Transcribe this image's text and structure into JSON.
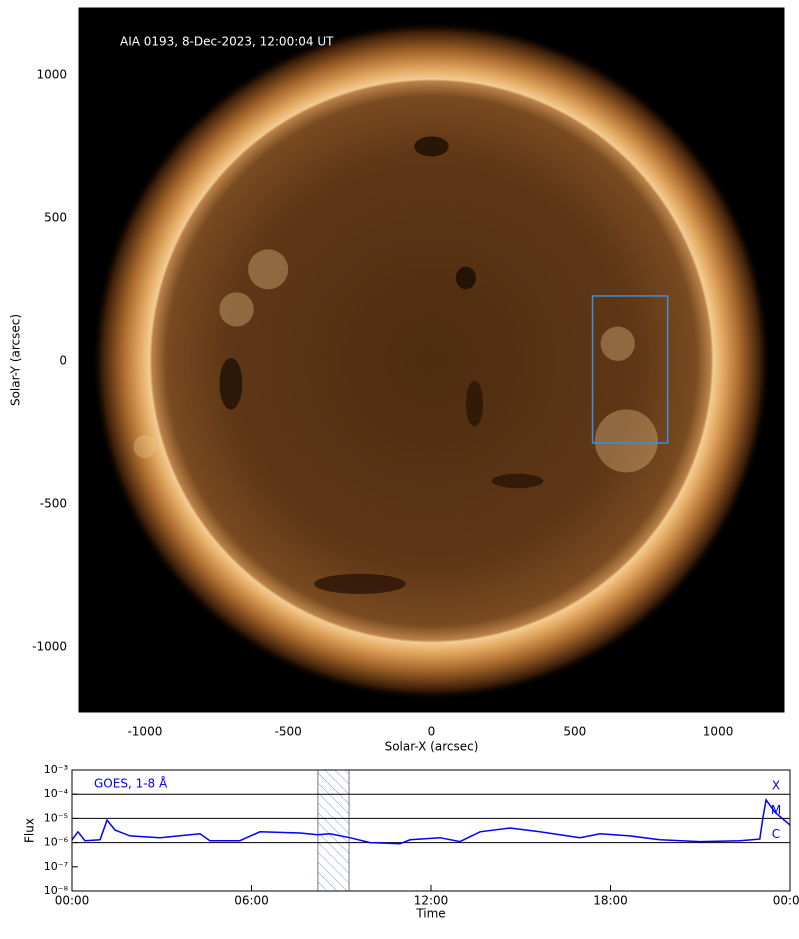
{
  "chart_data": [
    {
      "type": "image",
      "annotation": "AIA 0193, 8-Dec-2023, 12:00:04 UT",
      "xlabel": "Solar-X (arcsec)",
      "ylabel": "Solar-Y (arcsec)",
      "xlim": [
        -1230,
        1230
      ],
      "ylim": [
        -1228,
        1234
      ],
      "xticks": [
        -1000,
        -500,
        0,
        500,
        1000
      ],
      "yticks": [
        -1000,
        -500,
        0,
        500,
        1000
      ],
      "box": {
        "x": [
          562,
          824
        ],
        "y": [
          -287,
          227
        ],
        "color": "#3a8fe0"
      }
    },
    {
      "type": "line",
      "xlabel": "Time",
      "ylabel": "Flux",
      "xlim": [
        0,
        24
      ],
      "ylim": [
        1e-08,
        0.001
      ],
      "log": true,
      "xticks": [
        {
          "value": 0,
          "label": "00:00"
        },
        {
          "value": 6,
          "label": "06:00"
        },
        {
          "value": 12,
          "label": "12:00"
        },
        {
          "value": 18,
          "label": "18:00"
        },
        {
          "value": 24,
          "label": "00:00"
        }
      ],
      "yticks": [
        {
          "value": 1e-08,
          "label": "10⁻⁸"
        },
        {
          "value": 1e-07,
          "label": "10⁻⁷"
        },
        {
          "value": 1e-06,
          "label": "10⁻⁶"
        },
        {
          "value": 1e-05,
          "label": "10⁻⁵"
        },
        {
          "value": 0.0001,
          "label": "10⁻⁴"
        },
        {
          "value": 0.001,
          "label": "10⁻³"
        }
      ],
      "levels": [
        {
          "value": 0.0001,
          "label": "X"
        },
        {
          "value": 1e-05,
          "label": "M"
        },
        {
          "value": 1e-06,
          "label": "C"
        }
      ],
      "highlight": [
        8.22,
        9.26
      ],
      "series": [
        {
          "name": "GOES, 1-8 Å",
          "color": "#0000ff",
          "x": [
            0,
            0.2,
            0.43,
            0.94,
            1.17,
            1.44,
            1.94,
            2.94,
            4.28,
            4.61,
            5.61,
            6.28,
            7.62,
            8.22,
            8.62,
            9.29,
            9.96,
            10.96,
            11.3,
            12.3,
            12.97,
            13.64,
            14.64,
            15.64,
            16.98,
            17.65,
            18.65,
            19.65,
            20.99,
            22.33,
            22.99,
            23.09,
            23.2,
            23.5,
            24
          ],
          "values": [
            1.3e-06,
            2.8e-06,
            1.2e-06,
            1.3e-06,
            8.5e-06,
            3.3e-06,
            1.9e-06,
            1.6e-06,
            2.3e-06,
            1.2e-06,
            1.2e-06,
            2.8e-06,
            2.5e-06,
            2.1e-06,
            2.3e-06,
            1.6e-06,
            1e-06,
            9e-07,
            1.3e-06,
            1.6e-06,
            1.1e-06,
            2.8e-06,
            4e-06,
            2.8e-06,
            1.6e-06,
            2.3e-06,
            1.9e-06,
            1.3e-06,
            1.1e-06,
            1.2e-06,
            1.4e-06,
            1e-05,
            5.8e-05,
            1.8e-05,
            5.3e-06
          ]
        }
      ]
    }
  ]
}
